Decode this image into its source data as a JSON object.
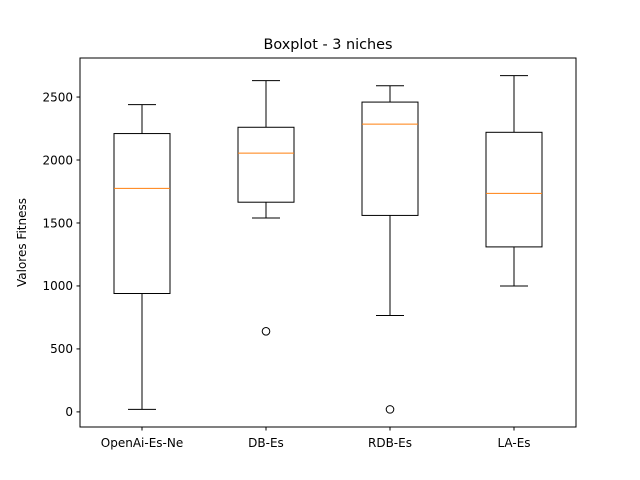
{
  "chart_data": {
    "type": "box",
    "title": "Boxplot - 3 niches",
    "xlabel": "",
    "ylabel": "Valores Fitness",
    "ylim": [
      -120,
      2810
    ],
    "yticks": [
      0,
      500,
      1000,
      1500,
      2000,
      2500
    ],
    "grid": false,
    "categories": [
      "OpenAi-Es-Ne",
      "DB-Es",
      "RDB-Es",
      "LA-Es"
    ],
    "boxes": [
      {
        "category": "OpenAi-Es-Ne",
        "whisker_low": 20,
        "q1": 940,
        "median": 1775,
        "q3": 2210,
        "whisker_high": 2440,
        "outliers": []
      },
      {
        "category": "DB-Es",
        "whisker_low": 1540,
        "q1": 1665,
        "median": 2055,
        "q3": 2260,
        "whisker_high": 2630,
        "outliers": [
          640
        ]
      },
      {
        "category": "RDB-Es",
        "whisker_low": 765,
        "q1": 1560,
        "median": 2285,
        "q3": 2460,
        "whisker_high": 2590,
        "outliers": [
          20
        ]
      },
      {
        "category": "LA-Es",
        "whisker_low": 1000,
        "q1": 1310,
        "median": 1735,
        "q3": 2220,
        "whisker_high": 2670,
        "outliers": []
      }
    ],
    "colors": {
      "box": "#000000",
      "median": "#ff7f0e",
      "whisker": "#000000",
      "outlier": "#000000"
    }
  }
}
